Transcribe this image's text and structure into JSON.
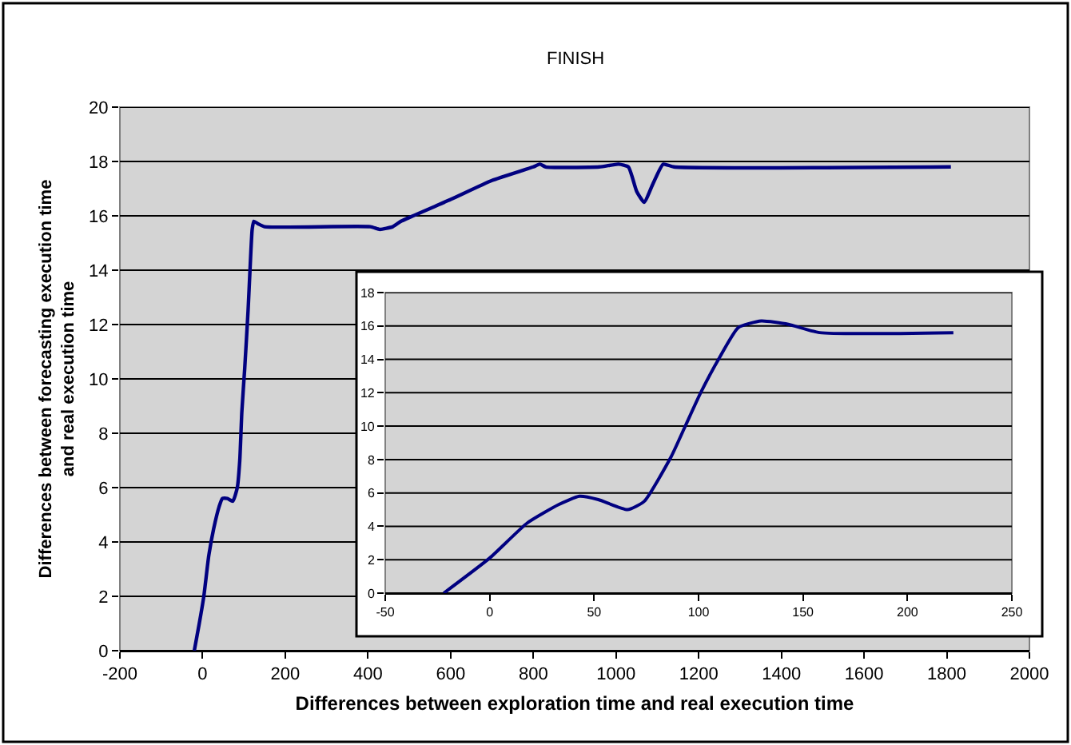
{
  "chart_data": [
    {
      "type": "line",
      "title": "FINISH",
      "xlabel": "Differences between exploration time and real execution time",
      "ylabel": "Differences between forecasting execution time\nand real execution time",
      "series": [
        {
          "color": "#000080",
          "x": [
            -20,
            -8,
            3,
            15,
            27,
            40,
            48,
            60,
            73,
            84,
            90,
            95,
            102,
            110,
            115,
            120,
            124,
            135,
            150,
            406,
            429,
            460,
            480,
            600,
            700,
            800,
            816,
            830,
            960,
            1006,
            1030,
            1050,
            1068,
            1090,
            1114,
            1140,
            1810
          ],
          "values": [
            0,
            1,
            2,
            3.5,
            4.5,
            5.3,
            5.6,
            5.6,
            5.5,
            6,
            7,
            8.8,
            10.4,
            12.5,
            14.1,
            15.5,
            15.8,
            15.7,
            15.6,
            15.6,
            15.5,
            15.6,
            15.8,
            16.6,
            17.3,
            17.8,
            17.9,
            17.8,
            17.8,
            17.9,
            17.8,
            16.9,
            16.5,
            17.2,
            17.9,
            17.8,
            17.8
          ]
        }
      ],
      "xlim": [
        -200,
        2000
      ],
      "xticks": [
        -200,
        0,
        200,
        400,
        600,
        800,
        1000,
        1200,
        1400,
        1600,
        1800,
        2000
      ],
      "ylim": [
        0,
        20
      ],
      "yticks": [
        0,
        2,
        4,
        6,
        8,
        10,
        12,
        14,
        16,
        18,
        20
      ],
      "grid": "y",
      "marker": "none",
      "line_style": "solid"
    },
    {
      "type": "line",
      "series": [
        {
          "color": "#000080",
          "x": [
            -22,
            0,
            18,
            33,
            43,
            52,
            66,
            74,
            87,
            94,
            101,
            110,
            119,
            130,
            143,
            158,
            222
          ],
          "values": [
            0,
            2.1,
            4.2,
            5.3,
            5.8,
            5.6,
            5.0,
            5.5,
            8.2,
            10.1,
            12,
            14.1,
            15.9,
            16.3,
            16.1,
            15.6,
            15.6
          ]
        }
      ],
      "xlim": [
        -50,
        250
      ],
      "xticks": [
        -50,
        0,
        50,
        100,
        150,
        200,
        250
      ],
      "ylim": [
        0,
        18
      ],
      "yticks": [
        0,
        2,
        4,
        6,
        8,
        10,
        12,
        14,
        16,
        18
      ],
      "grid": "y",
      "marker": "none",
      "line_style": "solid"
    }
  ]
}
